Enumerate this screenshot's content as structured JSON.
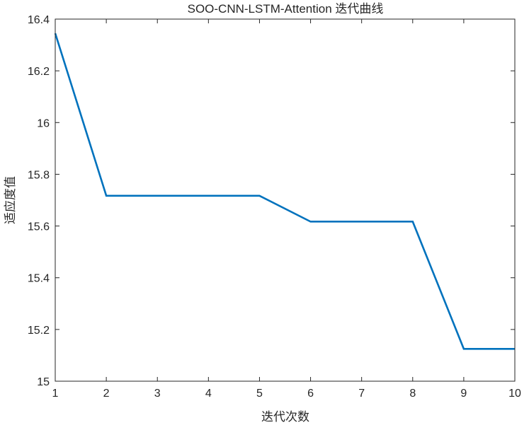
{
  "chart_data": {
    "type": "line",
    "title": "SOO-CNN-LSTM-Attention 迭代曲线",
    "xlabel": "迭代次数",
    "ylabel": "适应度值",
    "xlim": [
      1,
      10
    ],
    "ylim": [
      15,
      16.4
    ],
    "xticks": [
      1,
      2,
      3,
      4,
      5,
      6,
      7,
      8,
      9,
      10
    ],
    "yticks": [
      15,
      15.2,
      15.4,
      15.6,
      15.8,
      16,
      16.2,
      16.4
    ],
    "ytick_labels": [
      "15",
      "15.2",
      "15.4",
      "15.6",
      "15.8",
      "16",
      "16.2",
      "16.4"
    ],
    "grid": false,
    "legend": "none",
    "series": [
      {
        "color": "#0072BD",
        "x": [
          1,
          2,
          3,
          4,
          5,
          6,
          7,
          8,
          9,
          10
        ],
        "y": [
          16.345,
          15.717,
          15.717,
          15.717,
          15.717,
          15.617,
          15.617,
          15.617,
          15.125,
          15.125
        ]
      }
    ]
  }
}
